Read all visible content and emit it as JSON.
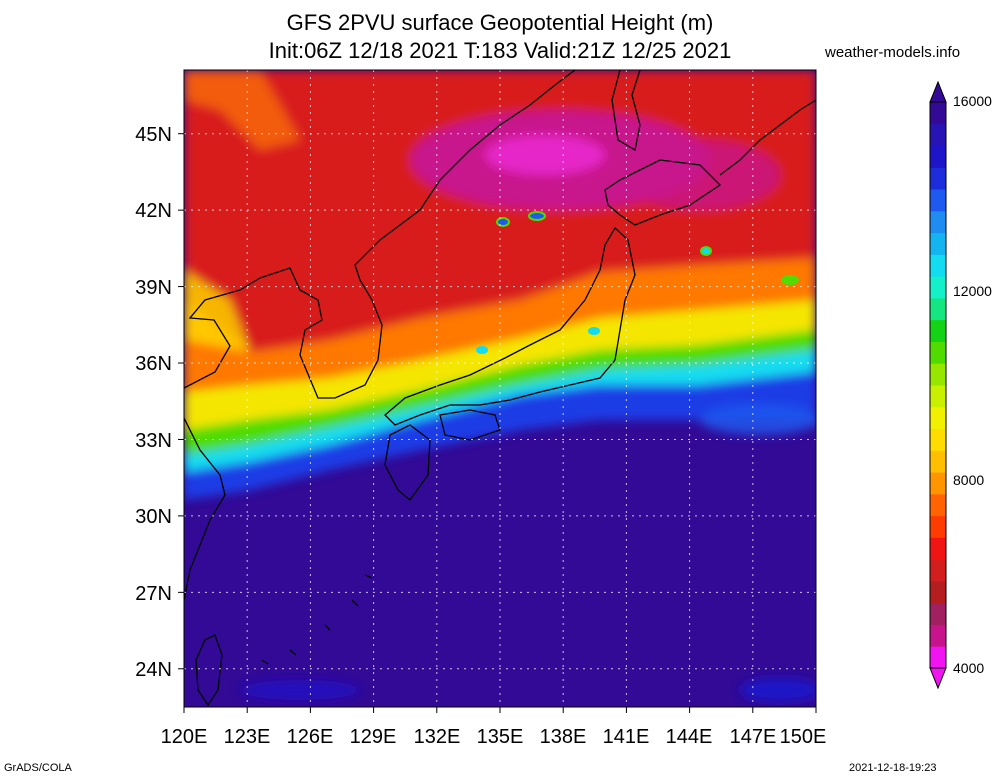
{
  "title": {
    "line1": "GFS 2PVU surface Geopotential Height (m)",
    "line2": "Init:06Z 12/18 2021 T:183 Valid:21Z 12/25 2021"
  },
  "site": "weather-models.info",
  "footer": {
    "left": "GrADS/COLA",
    "right": "2021-12-18-19:23"
  },
  "map": {
    "lat_labels": [
      "45N",
      "42N",
      "39N",
      "36N",
      "33N",
      "30N",
      "27N",
      "24N"
    ],
    "lon_labels": [
      "120E",
      "123E",
      "126E",
      "129E",
      "132E",
      "135E",
      "138E",
      "141E",
      "144E",
      "147E",
      "150E"
    ],
    "lat_range": [
      22.5,
      47.5
    ],
    "lon_range": [
      120,
      150
    ],
    "grid_lines": "dashed every 3 degrees"
  },
  "colorbar": {
    "labels": [
      "16000",
      "12000",
      "8000",
      "4000"
    ],
    "range": [
      4000,
      16000
    ],
    "colors": [
      "#f014f0",
      "#c8148c",
      "#a02060",
      "#b41e1e",
      "#d21e1e",
      "#f01414",
      "#ff3c00",
      "#ff6400",
      "#ff9600",
      "#ffbe00",
      "#ffdc00",
      "#f0f000",
      "#c8f000",
      "#96e600",
      "#50dc00",
      "#14d214",
      "#14e682",
      "#14f0c8",
      "#14dcf0",
      "#14b4f0",
      "#1e8cf0",
      "#1e5af0",
      "#1e2ddc",
      "#1e14c8",
      "#2814b4",
      "#320a96"
    ]
  }
}
